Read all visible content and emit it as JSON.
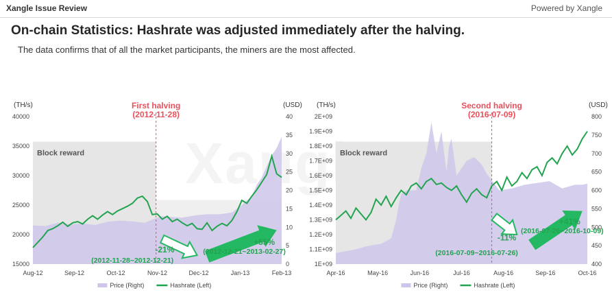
{
  "header": {
    "brand": "Xangle Issue Review",
    "powered_by": "Powered by Xangle"
  },
  "headline": "On-chain Statistics: Hashrate was adjusted immediately after the halving.",
  "subheadline": "The data confirms that of all the market participants, the miners are the most affected.",
  "watermark": "Xangle",
  "colors": {
    "hashrate": "#22a34f",
    "price_fill": "#cfc5ea",
    "block_reward": "#e6e6e6",
    "halving": "#e8505b",
    "arrow": "#25b862",
    "annotation": "#22a34f"
  },
  "chart_data": [
    {
      "type": "line",
      "left_unit": "(TH/s)",
      "right_unit": "(USD)",
      "left_ticks": [
        "40000",
        "35000",
        "30000",
        "25000",
        "20000",
        "15000"
      ],
      "right_ticks": [
        "40",
        "35",
        "30",
        "25",
        "20",
        "15",
        "10",
        "5",
        "0"
      ],
      "x_ticks": [
        "Aug-12",
        "Sep-12",
        "Oct-12",
        "Nov-12",
        "Dec-12",
        "Jan-13",
        "Feb-13"
      ],
      "ylim_left": [
        15000,
        40000
      ],
      "ylim_right": [
        0,
        40
      ],
      "halving_label": "First halving",
      "halving_date": "(2012-11-28)",
      "block_reward_label": "Block reward",
      "annotation_down": {
        "pct": "-21%",
        "range": "(2012-11-28~2012-12-21)"
      },
      "annotation_up": {
        "pct": "+55%",
        "range": "(2012-12-21~2013-02-27)"
      },
      "legend": {
        "price": "Price (Right)",
        "hashrate": "Hashrate (Left)"
      },
      "series": [
        {
          "name": "Hashrate (Left)",
          "axis": "left",
          "x": [
            0,
            2,
            4,
            6,
            8,
            10,
            12,
            14,
            16,
            18,
            20,
            22,
            24,
            26,
            28,
            30,
            32,
            34,
            36,
            38,
            40,
            42,
            44,
            46,
            48,
            50,
            52,
            54,
            56,
            58,
            60,
            62,
            64,
            66,
            68,
            70,
            72,
            74,
            76,
            78,
            80,
            82,
            84,
            86,
            88,
            90,
            92,
            94,
            96,
            98,
            100
          ],
          "values": [
            17800,
            18700,
            19600,
            20700,
            21000,
            21500,
            22100,
            21400,
            22000,
            22200,
            21800,
            22600,
            23200,
            22600,
            23300,
            23900,
            23400,
            24000,
            24400,
            24800,
            25300,
            26200,
            26500,
            25600,
            23400,
            23500,
            22600,
            23100,
            22200,
            22600,
            22000,
            21500,
            21900,
            21000,
            20900,
            22000,
            20700,
            21400,
            21900,
            21500,
            22400,
            23900,
            25800,
            25300,
            26500,
            27600,
            28900,
            30200,
            33300,
            30300,
            29700
          ]
        },
        {
          "name": "Price (Right)",
          "axis": "right",
          "x": [
            0,
            5,
            10,
            15,
            20,
            25,
            30,
            35,
            40,
            45,
            50,
            52,
            55,
            60,
            65,
            70,
            75,
            80,
            84,
            88,
            90,
            92,
            94,
            96,
            98,
            100
          ],
          "values": [
            10.5,
            10.3,
            11.2,
            10.8,
            11.0,
            10.6,
            11.5,
            11.8,
            11.6,
            11.2,
            12.6,
            13.0,
            12.8,
            12.6,
            13.2,
            13.5,
            13.5,
            14.0,
            16.0,
            18.5,
            21.5,
            23.5,
            26.5,
            29.5,
            31.5,
            34.5
          ]
        }
      ]
    },
    {
      "type": "line",
      "left_unit": "(TH/s)",
      "right_unit": "(USD)",
      "left_ticks": [
        "2E+09",
        "1.9E+09",
        "1.8E+09",
        "1.7E+09",
        "1.6E+09",
        "1.5E+09",
        "1.4E+09",
        "1.3E+09",
        "1.2E+09",
        "1.1E+09",
        "1E+09"
      ],
      "right_ticks": [
        "800",
        "750",
        "700",
        "650",
        "600",
        "550",
        "500",
        "450",
        "400"
      ],
      "x_ticks": [
        "Apr-16",
        "May-16",
        "Jun-16",
        "Jul-16",
        "Aug-16",
        "Sep-16",
        "Oct-16"
      ],
      "ylim_left": [
        1000000000,
        2000000000
      ],
      "ylim_right": [
        400,
        800
      ],
      "halving_label": "Second halving",
      "halving_date": "(2016-07-09)",
      "block_reward_label": "Block reward",
      "annotation_down": {
        "pct": "-11%",
        "range": "(2016-07-09~2016-07-26)"
      },
      "annotation_up": {
        "pct": "+41%",
        "range": "(2016-07-26~2016-10-09)"
      },
      "legend": {
        "price": "Price (Right)",
        "hashrate": "Hashrate (Left)"
      },
      "series": [
        {
          "name": "Hashrate (Left)",
          "axis": "left",
          "x": [
            0,
            2,
            4,
            6,
            8,
            10,
            12,
            14,
            16,
            18,
            20,
            22,
            24,
            26,
            28,
            30,
            32,
            34,
            36,
            38,
            40,
            42,
            44,
            46,
            48,
            50,
            52,
            54,
            56,
            58,
            60,
            62,
            64,
            66,
            68,
            70,
            72,
            74,
            76,
            78,
            80,
            82,
            84,
            86,
            88,
            90,
            92,
            94,
            96,
            98,
            100
          ],
          "values": [
            1300000000,
            1330000000,
            1360000000,
            1310000000,
            1380000000,
            1340000000,
            1300000000,
            1350000000,
            1440000000,
            1400000000,
            1460000000,
            1390000000,
            1450000000,
            1500000000,
            1470000000,
            1530000000,
            1550000000,
            1510000000,
            1560000000,
            1580000000,
            1540000000,
            1550000000,
            1520000000,
            1500000000,
            1530000000,
            1470000000,
            1420000000,
            1480000000,
            1510000000,
            1470000000,
            1450000000,
            1530000000,
            1560000000,
            1500000000,
            1590000000,
            1530000000,
            1560000000,
            1620000000,
            1580000000,
            1640000000,
            1660000000,
            1600000000,
            1690000000,
            1720000000,
            1680000000,
            1750000000,
            1800000000,
            1740000000,
            1780000000,
            1850000000,
            1900000000
          ]
        },
        {
          "name": "Price (Right)",
          "axis": "right",
          "x": [
            0,
            4,
            8,
            12,
            15,
            18,
            20,
            22,
            24,
            25,
            26,
            28,
            30,
            32,
            34,
            36,
            38,
            40,
            42,
            44,
            45,
            46,
            48,
            50,
            52,
            55,
            58,
            60,
            65,
            70,
            75,
            80,
            85,
            90,
            95,
            98,
            100
          ],
          "values": [
            430,
            435,
            440,
            448,
            452,
            455,
            462,
            470,
            520,
            560,
            590,
            600,
            600,
            600,
            660,
            700,
            785,
            700,
            760,
            650,
            720,
            740,
            640,
            660,
            680,
            690,
            670,
            645,
            600,
            605,
            615,
            620,
            625,
            605,
            615,
            615,
            618
          ]
        }
      ]
    }
  ]
}
